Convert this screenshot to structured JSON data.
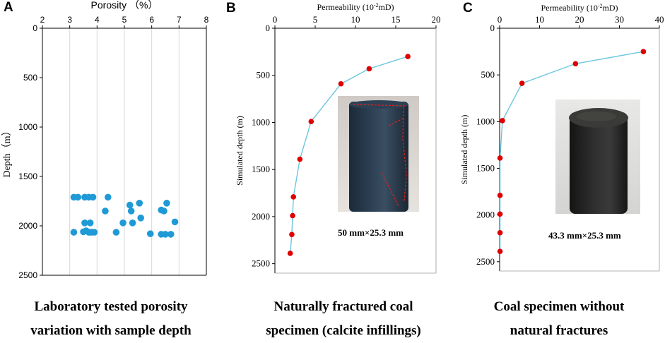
{
  "chart_data": [
    {
      "id": "A",
      "type": "scatter",
      "panel_label": "A",
      "title": "",
      "xlabel": "Porosity （%）",
      "ylabel": "Depth（m）",
      "xlim": [
        2,
        8
      ],
      "ylim": [
        0,
        2500
      ],
      "x_ticks": [
        "2",
        "3",
        "4",
        "5",
        "6",
        "7",
        "8"
      ],
      "y_ticks": [
        "0",
        "500",
        "1000",
        "1500",
        "2000",
        "2500"
      ],
      "point_color": "#1f9ad6",
      "points": [
        {
          "x": 3.15,
          "y": 1710
        },
        {
          "x": 3.3,
          "y": 1710
        },
        {
          "x": 3.55,
          "y": 1710
        },
        {
          "x": 3.7,
          "y": 1710
        },
        {
          "x": 3.85,
          "y": 1710
        },
        {
          "x": 4.4,
          "y": 1710
        },
        {
          "x": 5.55,
          "y": 1770
        },
        {
          "x": 6.55,
          "y": 1770
        },
        {
          "x": 5.2,
          "y": 1790
        },
        {
          "x": 4.3,
          "y": 1850
        },
        {
          "x": 5.25,
          "y": 1850
        },
        {
          "x": 6.35,
          "y": 1840
        },
        {
          "x": 6.45,
          "y": 1850
        },
        {
          "x": 5.6,
          "y": 1920
        },
        {
          "x": 3.55,
          "y": 1970
        },
        {
          "x": 3.75,
          "y": 1970
        },
        {
          "x": 4.95,
          "y": 1970
        },
        {
          "x": 5.3,
          "y": 1970
        },
        {
          "x": 6.85,
          "y": 1960
        },
        {
          "x": 3.15,
          "y": 2065
        },
        {
          "x": 3.5,
          "y": 2060
        },
        {
          "x": 3.6,
          "y": 2050
        },
        {
          "x": 3.7,
          "y": 2065
        },
        {
          "x": 3.8,
          "y": 2065
        },
        {
          "x": 3.9,
          "y": 2065
        },
        {
          "x": 4.7,
          "y": 2065
        },
        {
          "x": 5.95,
          "y": 2080
        },
        {
          "x": 6.35,
          "y": 2085
        },
        {
          "x": 6.5,
          "y": 2085
        },
        {
          "x": 6.7,
          "y": 2085
        }
      ],
      "caption": [
        "Laboratory tested porosity",
        "variation with sample depth"
      ]
    },
    {
      "id": "B",
      "type": "line",
      "panel_label": "B",
      "title": "",
      "xlabel": "Permeability (10",
      "xlabel_sup": "-2",
      "xlabel_end": "mD)",
      "ylabel": "Simulated depth (m)",
      "xlim": [
        0,
        20
      ],
      "ylim": [
        0,
        2600
      ],
      "x_ticks": [
        "0",
        "5",
        "10",
        "15",
        "20"
      ],
      "y_ticks": [
        "0",
        "500",
        "1000",
        "1500",
        "2000",
        "2500"
      ],
      "line_color": "#6cc6e0",
      "marker_color": "#e00000",
      "x": [
        16.5,
        11.7,
        8.2,
        4.5,
        3.1,
        2.3,
        2.2,
        2.1,
        1.9
      ],
      "y": [
        300,
        430,
        590,
        990,
        1390,
        1790,
        1990,
        2190,
        2390
      ],
      "specimen": "50 mm×25.3 mm",
      "caption": [
        "Naturally fractured coal",
        "specimen (calcite infillings)"
      ]
    },
    {
      "id": "C",
      "type": "line",
      "panel_label": "C",
      "title": "",
      "xlabel": "Permeability (10",
      "xlabel_sup": "-2",
      "xlabel_end": "mD)",
      "ylabel": "Simulated depth (m)",
      "xlim": [
        0,
        40
      ],
      "ylim": [
        0,
        2600
      ],
      "x_ticks": [
        "0",
        "10",
        "20",
        "30",
        "40"
      ],
      "y_ticks": [
        "0",
        "500",
        "1000",
        "1500",
        "2000",
        "2500"
      ],
      "line_color": "#6cc6e0",
      "marker_color": "#e00000",
      "x": [
        36,
        19,
        5.6,
        0.7,
        0.1,
        0.1,
        0.1,
        0.1,
        0.1
      ],
      "y": [
        250,
        380,
        590,
        990,
        1390,
        1790,
        1990,
        2190,
        2390
      ],
      "specimen": "43.3 mm×25.3 mm",
      "caption": [
        "Coal specimen without",
        "natural fractures"
      ]
    }
  ]
}
